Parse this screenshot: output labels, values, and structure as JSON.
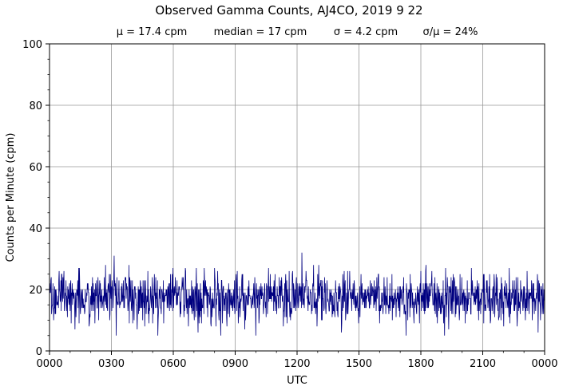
{
  "chart_data": {
    "type": "line",
    "title": "Observed Gamma Counts, AJ4CO, 2019 9 22",
    "stats": {
      "mean": "μ = 17.4 cpm",
      "median": "median = 17 cpm",
      "sigma": "σ = 4.2 cpm",
      "ratio": "σ/μ = 24%"
    },
    "xlabel": "UTC",
    "ylabel": "Counts per Minute (cpm)",
    "xlim_hours": [
      0,
      24
    ],
    "ylim": [
      0,
      100
    ],
    "x_ticks": [
      {
        "hour": 0,
        "label": "0000"
      },
      {
        "hour": 3,
        "label": "0300"
      },
      {
        "hour": 6,
        "label": "0600"
      },
      {
        "hour": 9,
        "label": "0900"
      },
      {
        "hour": 12,
        "label": "1200"
      },
      {
        "hour": 15,
        "label": "1500"
      },
      {
        "hour": 18,
        "label": "1800"
      },
      {
        "hour": 21,
        "label": "2100"
      },
      {
        "hour": 24,
        "label": "0000"
      }
    ],
    "y_ticks": [
      0,
      20,
      40,
      60,
      80,
      100
    ],
    "grid": true,
    "line_color": "#000080",
    "grid_color": "#999999",
    "series": [
      {
        "sampling": "1 sample per minute",
        "approx_mean": 17.4,
        "approx_std": 4.2,
        "approx_min": 5,
        "approx_max": 33
      }
    ]
  }
}
